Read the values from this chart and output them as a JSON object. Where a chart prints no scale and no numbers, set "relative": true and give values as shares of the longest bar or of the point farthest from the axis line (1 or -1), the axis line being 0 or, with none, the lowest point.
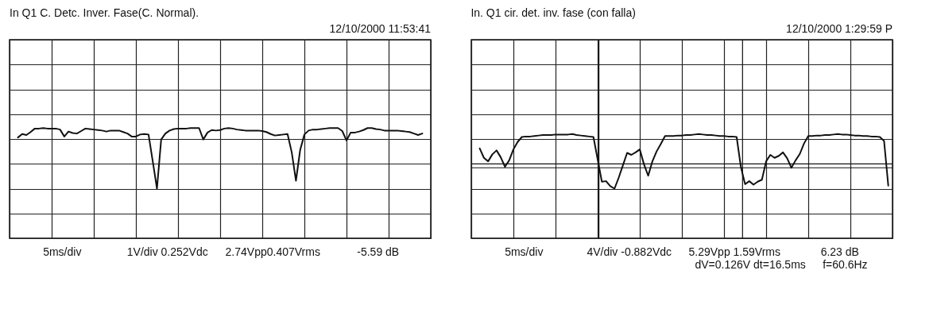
{
  "chart_data": [
    {
      "type": "line",
      "title": "In Q1 C. Detc.  Inver. Fase(C. Normal).",
      "subtitle": "12/10/2000  11:53:41",
      "relative": true,
      "categories": [
        null,
        null,
        null,
        null,
        null,
        null,
        null,
        null,
        null,
        null,
        null,
        null,
        null,
        null,
        null,
        null,
        null,
        null,
        null,
        null,
        null,
        null,
        null,
        null,
        null,
        null,
        null,
        null,
        null,
        null,
        null,
        null,
        null,
        null,
        null,
        null,
        null,
        null,
        null,
        null,
        null,
        null,
        null,
        null,
        null,
        null,
        null,
        null,
        null,
        null,
        null,
        null,
        null,
        null,
        null,
        null,
        null,
        null,
        null,
        null,
        null,
        null,
        null,
        null,
        null,
        null,
        null,
        null,
        null,
        null,
        null,
        null,
        null,
        null,
        null,
        null,
        null,
        null,
        null,
        null,
        null,
        null,
        null,
        null,
        null,
        null,
        null,
        null,
        null,
        null,
        null,
        null,
        null,
        null,
        null,
        null,
        null,
        null,
        null,
        null,
        null
      ],
      "series": [
        {
          "color": "#111111",
          "values": [
            null,
            null,
            0.03,
            0.1,
            0.08,
            0.14,
            0.21,
            0.21,
            0.22,
            0.21,
            0.21,
            0.21,
            0.19,
            0.05,
            0.15,
            0.12,
            0.11,
            0.16,
            0.21,
            0.2,
            0.19,
            0.18,
            0.17,
            0.15,
            0.17,
            0.17,
            0.17,
            0.14,
            0.11,
            0.05,
            0.05,
            0.09,
            0.1,
            0.09,
            -0.45,
            -1,
            -0.01,
            0.11,
            0.17,
            0.2,
            0.21,
            0.21,
            0.21,
            0.22,
            0.22,
            0.22,
            -0.01,
            0.13,
            0.18,
            0.17,
            0.18,
            0.21,
            0.22,
            0.21,
            0.19,
            0.18,
            0.17,
            0.17,
            0.17,
            0.17,
            0.16,
            0.14,
            0.1,
            0.07,
            0.08,
            0.09,
            0.1,
            -0.27,
            -0.84,
            -0.22,
            0.09,
            0.17,
            0.19,
            0.19,
            0.2,
            0.21,
            0.22,
            0.22,
            0.22,
            0.16,
            -0.03,
            0.13,
            0.13,
            0.15,
            0.18,
            0.22,
            0.22,
            0.2,
            0.19,
            0.17,
            0.17,
            0.17,
            0.17,
            0.16,
            0.15,
            0.14,
            0.11,
            0.08,
            0.11,
            null,
            null
          ]
        }
      ],
      "grid": true,
      "line_style": "solid",
      "annotations": [
        "5ms/div",
        "1V/div  0.252Vdc",
        "2.74Vpp0.407Vrms",
        "-5.59 dB"
      ]
    },
    {
      "type": "line",
      "title": "In. Q1 cir. det. inv. fase (con falla)",
      "subtitle": "12/10/2000  1:29:59 P",
      "relative": true,
      "categories": [
        null,
        null,
        null,
        null,
        null,
        null,
        null,
        null,
        null,
        null,
        null,
        null,
        null,
        null,
        null,
        null,
        null,
        null,
        null,
        null,
        null,
        null,
        null,
        null,
        null,
        null,
        null,
        null,
        null,
        null,
        null,
        null,
        null,
        null,
        null,
        null,
        null,
        null,
        null,
        null,
        null,
        null,
        null,
        null,
        null,
        null,
        null,
        null,
        null,
        null,
        null,
        null,
        null,
        null,
        null,
        null,
        null,
        null,
        null,
        null,
        null,
        null,
        null,
        null,
        null,
        null,
        null,
        null,
        null,
        null,
        null,
        null,
        null,
        null,
        null,
        null,
        null,
        null,
        null,
        null,
        null,
        null,
        null,
        null,
        null,
        null,
        null,
        null,
        null,
        null,
        null,
        null,
        null,
        null,
        null,
        null,
        null,
        null,
        null,
        null,
        null
      ],
      "series": [
        {
          "color": "#111111",
          "values": [
            null,
            null,
            -0.19,
            -0.38,
            -0.45,
            -0.31,
            -0.23,
            -0.37,
            -0.56,
            -0.43,
            -0.21,
            -0.06,
            0.04,
            0.05,
            0.05,
            0.06,
            0.07,
            0.08,
            0.08,
            0.08,
            0.09,
            0.09,
            0.09,
            0.09,
            0.1,
            0.08,
            0.07,
            0.06,
            0.05,
            0.04,
            -0.41,
            -0.86,
            -0.85,
            -0.95,
            -1,
            -0.78,
            -0.53,
            -0.28,
            -0.32,
            -0.27,
            -0.21,
            -0.51,
            -0.74,
            -0.45,
            -0.25,
            -0.1,
            0.06,
            0.06,
            0.06,
            0.07,
            0.07,
            0.08,
            0.08,
            0.09,
            0.1,
            0.09,
            0.08,
            0.08,
            0.07,
            0.06,
            0.06,
            0.05,
            0.05,
            0.04,
            -0.56,
            -0.91,
            -0.85,
            -0.92,
            -0.86,
            -0.82,
            -0.45,
            -0.32,
            -0.38,
            -0.34,
            -0.27,
            -0.39,
            -0.58,
            -0.43,
            -0.3,
            -0.09,
            0.06,
            0.06,
            0.07,
            0.07,
            0.08,
            0.08,
            0.09,
            0.1,
            0.09,
            0.09,
            0.08,
            0.07,
            0.07,
            0.06,
            0.06,
            0.05,
            0.05,
            0.04,
            -0.04,
            -0.94,
            null
          ]
        }
      ],
      "grid": true,
      "line_style": "solid",
      "annotations": [
        "5ms/div",
        "4V/div -0.882Vdc",
        "5.29Vpp  1.59Vrms",
        "6.23 dB",
        "dV=0.126V dt=16.5ms",
        "f=60.6Hz"
      ]
    }
  ]
}
